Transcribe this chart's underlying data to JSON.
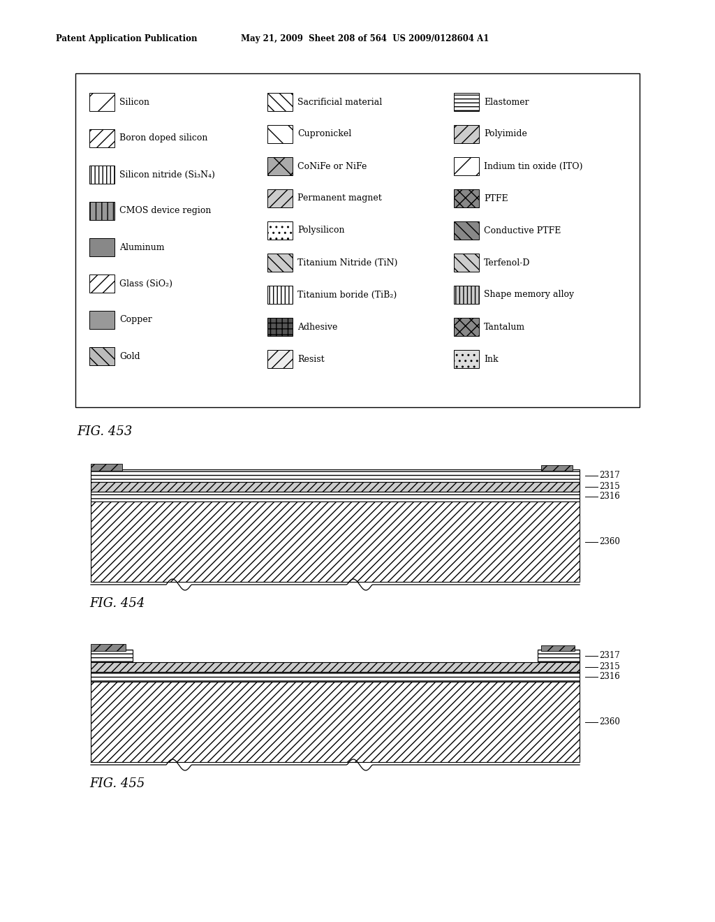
{
  "header_left": "Patent Application Publication",
  "header_right": "May 21, 2009  Sheet 208 of 564  US 2009/0128604 A1",
  "fig453_label": "FIG. 453",
  "fig454_label": "FIG. 454",
  "fig455_label": "FIG. 455",
  "legend_items_col1": [
    "Silicon",
    "Boron doped silicon",
    "Silicon nitride (Si₃N₄)",
    "CMOS device region",
    "Aluminum",
    "Glass (SiO₂)",
    "Copper",
    "Gold"
  ],
  "legend_items_col2": [
    "Sacrificial material",
    "Cupronickel",
    "CoNiFe or NiFe",
    "Permanent magnet",
    "Polysilicon",
    "Titanium Nitride (TiN)",
    "Titanium boride (TiB₂)",
    "Adhesive",
    "Resist"
  ],
  "legend_items_col3": [
    "Elastomer",
    "Polyimide",
    "Indium tin oxide (ITO)",
    "PTFE",
    "Conductive PTFE",
    "Terfenol-D",
    "Shape memory alloy",
    "Tantalum",
    "Ink"
  ],
  "layer_labels_454": [
    "2317",
    "2315",
    "2316",
    "2360"
  ],
  "layer_labels_455": [
    "2317",
    "2315",
    "2316",
    "2360"
  ],
  "page_bg": "#ffffff"
}
